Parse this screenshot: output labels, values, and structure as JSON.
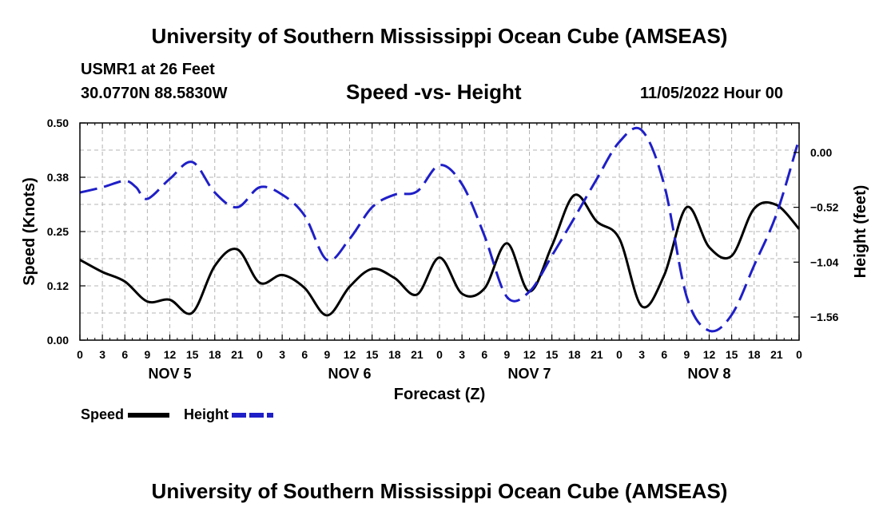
{
  "header": {
    "title": "University of Southern Mississippi Ocean Cube (AMSEAS)",
    "station": "USMR1 at 26 Feet",
    "coords": "30.0770N  88.5830W",
    "chart_title": "Speed -vs- Height",
    "date": "11/05/2022 Hour 00"
  },
  "footer": {
    "title": "University of Southern Mississippi Ocean Cube (AMSEAS)"
  },
  "chart_data": {
    "type": "line",
    "title": "Speed -vs- Height",
    "xlabel": "Forecast (Z)",
    "ylabel": "Speed (Knots)",
    "y2label": "Height (feet)",
    "ylim": [
      0,
      0.5
    ],
    "y2lim": [
      -1.78,
      0.28
    ],
    "xlim": [
      0,
      96
    ],
    "grid": true,
    "y_ticks": [
      "0.00",
      "0.12",
      "0.25",
      "0.38",
      "0.50"
    ],
    "y_tick_values": [
      0,
      0.125,
      0.25,
      0.375,
      0.5
    ],
    "y2_ticks": [
      "0.00",
      "−0.52",
      "−1.04",
      "−1.56"
    ],
    "y2_tick_values": [
      0,
      -0.52,
      -1.04,
      -1.56
    ],
    "x_tick_labels": [
      "0",
      "3",
      "6",
      "9",
      "12",
      "15",
      "18",
      "21",
      "0",
      "3",
      "6",
      "9",
      "12",
      "15",
      "18",
      "21",
      "0",
      "3",
      "6",
      "9",
      "12",
      "15",
      "18",
      "21",
      "0",
      "3",
      "6",
      "9",
      "12",
      "15",
      "18",
      "21",
      "0"
    ],
    "days": [
      {
        "label": "NOV 5",
        "hour": 12
      },
      {
        "label": "NOV 6",
        "hour": 36
      },
      {
        "label": "NOV 7",
        "hour": 60
      },
      {
        "label": "NOV 8",
        "hour": 84
      }
    ],
    "series": [
      {
        "name": "Speed",
        "axis": "left",
        "color": "#000000",
        "dash": "solid",
        "x": [
          0,
          3,
          6,
          9,
          12,
          15,
          18,
          21,
          24,
          27,
          30,
          33,
          36,
          39,
          42,
          45,
          48,
          51,
          54,
          57,
          60,
          63,
          66,
          69,
          72,
          75,
          78,
          81,
          84,
          87,
          90,
          93,
          96
        ],
        "values": [
          0.185,
          0.157,
          0.135,
          0.089,
          0.093,
          0.063,
          0.171,
          0.209,
          0.132,
          0.15,
          0.12,
          0.057,
          0.123,
          0.164,
          0.143,
          0.105,
          0.19,
          0.107,
          0.119,
          0.223,
          0.112,
          0.217,
          0.334,
          0.273,
          0.234,
          0.078,
          0.15,
          0.306,
          0.214,
          0.194,
          0.303,
          0.311,
          0.256
        ]
      },
      {
        "name": "Height",
        "axis": "right",
        "color": "#1f1fc8",
        "dash": "dashed",
        "x": [
          0,
          3,
          6,
          7.5,
          9,
          12,
          15,
          18,
          21,
          24,
          27,
          30,
          33,
          36,
          39,
          42,
          45,
          48,
          51,
          54,
          57,
          60,
          63,
          66,
          69,
          72,
          75,
          78,
          81,
          84,
          87,
          90,
          93,
          96
        ],
        "values": [
          -0.38,
          -0.33,
          -0.27,
          -0.33,
          -0.44,
          -0.25,
          -0.09,
          -0.38,
          -0.52,
          -0.33,
          -0.4,
          -0.6,
          -1.02,
          -0.82,
          -0.52,
          -0.4,
          -0.37,
          -0.12,
          -0.3,
          -0.79,
          -1.37,
          -1.32,
          -0.98,
          -0.62,
          -0.25,
          0.1,
          0.21,
          -0.31,
          -1.37,
          -1.69,
          -1.54,
          -1.07,
          -0.58,
          0.13
        ]
      }
    ],
    "legend": [
      {
        "label": "Speed",
        "color": "#000000",
        "dash": "solid"
      },
      {
        "label": "Height",
        "color": "#1f1fc8",
        "dash": "dashed"
      }
    ]
  }
}
